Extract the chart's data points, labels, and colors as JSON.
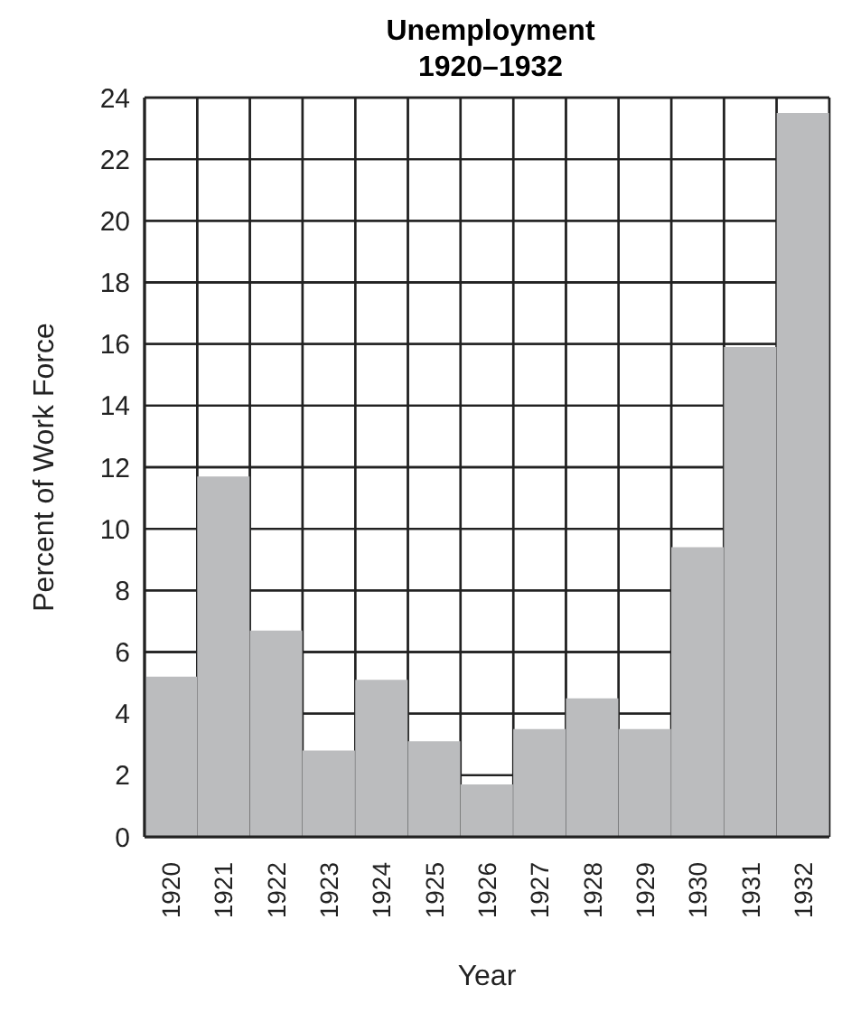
{
  "chart_data": {
    "type": "bar",
    "title": "Unemployment",
    "subtitle": "1920–1932",
    "xlabel": "Year",
    "ylabel": "Percent of Work Force",
    "categories": [
      "1920",
      "1921",
      "1922",
      "1923",
      "1924",
      "1925",
      "1926",
      "1927",
      "1928",
      "1929",
      "1930",
      "1931",
      "1932"
    ],
    "values": [
      5.2,
      11.7,
      6.7,
      2.8,
      5.1,
      3.1,
      1.7,
      3.5,
      4.5,
      3.5,
      9.4,
      15.9,
      23.5
    ],
    "color": "#bbbcbe",
    "ylim": [
      0,
      24
    ],
    "yticks": [
      0,
      2,
      4,
      6,
      8,
      10,
      12,
      14,
      16,
      18,
      20,
      22,
      24
    ],
    "grid": true
  }
}
